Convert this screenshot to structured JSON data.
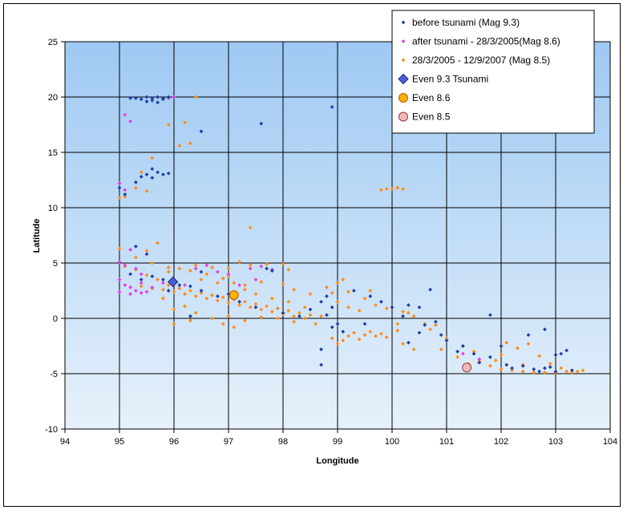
{
  "chart_data": {
    "type": "scatter",
    "xlabel": "Longitude",
    "ylabel": "Latitude",
    "xlim": [
      94,
      104
    ],
    "ylim": [
      -10,
      25
    ],
    "x_ticks": [
      "94",
      "95",
      "96",
      "97",
      "98",
      "99",
      "100",
      "101",
      "102",
      "103",
      "104"
    ],
    "y_ticks": [
      "-10",
      "-5",
      "0",
      "5",
      "10",
      "15",
      "20",
      "25"
    ],
    "grid": true,
    "legend_position": "top-right",
    "series": [
      {
        "name": "before tsunami (Mag 9.3)",
        "color": "#1f3fa8",
        "marker": "diamond",
        "points": [
          [
            95.3,
            19.9
          ],
          [
            95.4,
            19.8
          ],
          [
            95.5,
            20.0
          ],
          [
            95.6,
            19.9
          ],
          [
            95.7,
            20.0
          ],
          [
            95.8,
            19.8
          ],
          [
            95.7,
            19.5
          ],
          [
            95.5,
            19.6
          ],
          [
            95.6,
            19.7
          ],
          [
            95.8,
            19.9
          ],
          [
            95.9,
            20.0
          ],
          [
            95.2,
            19.9
          ],
          [
            96.5,
            16.9
          ],
          [
            97.6,
            17.6
          ],
          [
            98.9,
            19.1
          ],
          [
            95.3,
            12.3
          ],
          [
            95.4,
            12.8
          ],
          [
            95.5,
            13.0
          ],
          [
            95.6,
            13.5
          ],
          [
            95.7,
            13.2
          ],
          [
            95.8,
            13.0
          ],
          [
            95.9,
            13.1
          ],
          [
            95.6,
            12.7
          ],
          [
            95.0,
            11.8
          ],
          [
            95.1,
            11.2
          ],
          [
            95.3,
            6.5
          ],
          [
            95.5,
            5.8
          ],
          [
            95.2,
            4.0
          ],
          [
            95.4,
            3.5
          ],
          [
            95.6,
            3.8
          ],
          [
            95.8,
            3.5
          ],
          [
            96.0,
            3.3
          ],
          [
            96.1,
            3.0
          ],
          [
            95.9,
            2.5
          ],
          [
            96.3,
            2.9
          ],
          [
            96.5,
            2.5
          ],
          [
            96.8,
            2.0
          ],
          [
            97.0,
            2.2
          ],
          [
            97.2,
            1.5
          ],
          [
            97.5,
            1.0
          ],
          [
            97.7,
            4.5
          ],
          [
            97.8,
            4.3
          ],
          [
            98.0,
            0.5
          ],
          [
            98.3,
            0.2
          ],
          [
            98.5,
            0.8
          ],
          [
            98.7,
            1.5
          ],
          [
            98.8,
            2.0
          ],
          [
            98.9,
            1.0
          ],
          [
            98.8,
            0.3
          ],
          [
            98.9,
            -0.8
          ],
          [
            98.7,
            -2.8
          ],
          [
            98.7,
            -4.2
          ],
          [
            99.0,
            -0.5
          ],
          [
            99.1,
            -1.2
          ],
          [
            99.3,
            2.5
          ],
          [
            99.6,
            2.0
          ],
          [
            99.8,
            1.5
          ],
          [
            100.0,
            1.0
          ],
          [
            100.2,
            0.2
          ],
          [
            100.3,
            1.2
          ],
          [
            100.5,
            1.0
          ],
          [
            100.7,
            2.6
          ],
          [
            100.6,
            -0.6
          ],
          [
            100.8,
            -0.3
          ],
          [
            100.9,
            -1.5
          ],
          [
            101.0,
            -2.0
          ],
          [
            101.2,
            -3.0
          ],
          [
            101.3,
            -2.5
          ],
          [
            101.5,
            -3.2
          ],
          [
            101.6,
            -4.0
          ],
          [
            101.8,
            -3.5
          ],
          [
            102.0,
            -2.5
          ],
          [
            102.1,
            -4.2
          ],
          [
            102.2,
            -4.5
          ],
          [
            102.4,
            -4.3
          ],
          [
            102.6,
            -4.6
          ],
          [
            102.8,
            -4.5
          ],
          [
            103.0,
            -4.8
          ],
          [
            103.1,
            -3.2
          ],
          [
            103.2,
            -2.9
          ],
          [
            103.3,
            -4.7
          ],
          [
            102.7,
            -4.8
          ],
          [
            102.9,
            -4.4
          ],
          [
            101.8,
            0.3
          ],
          [
            102.5,
            -1.5
          ],
          [
            102.8,
            -1.0
          ],
          [
            103.0,
            -3.3
          ],
          [
            100.3,
            -2.2
          ],
          [
            100.5,
            -1.3
          ],
          [
            99.5,
            -0.5
          ],
          [
            96.3,
            0.2
          ],
          [
            96.5,
            4.2
          ]
        ]
      },
      {
        "name": "after tsunami - 28/3/2005(Mag 8.6)",
        "color": "#e040e0",
        "marker": "diamond",
        "points": [
          [
            95.1,
            18.4
          ],
          [
            95.2,
            17.8
          ],
          [
            95.9,
            19.9
          ],
          [
            96.0,
            20.0
          ],
          [
            95.0,
            12.2
          ],
          [
            95.1,
            11.6
          ],
          [
            95.2,
            6.2
          ],
          [
            95.0,
            5.1
          ],
          [
            95.1,
            4.8
          ],
          [
            95.3,
            4.5
          ],
          [
            95.4,
            4.0
          ],
          [
            95.0,
            3.5
          ],
          [
            95.1,
            3.0
          ],
          [
            95.0,
            2.4
          ],
          [
            95.2,
            2.2
          ],
          [
            95.3,
            2.5
          ],
          [
            95.4,
            2.3
          ],
          [
            95.5,
            2.4
          ],
          [
            95.6,
            2.8
          ],
          [
            95.8,
            3.2
          ],
          [
            96.0,
            3.4
          ],
          [
            96.2,
            3.0
          ],
          [
            96.4,
            4.5
          ],
          [
            96.6,
            4.8
          ],
          [
            96.8,
            4.2
          ],
          [
            97.0,
            4.0
          ],
          [
            97.4,
            4.5
          ],
          [
            97.6,
            4.7
          ],
          [
            97.8,
            4.4
          ],
          [
            97.2,
            3.0
          ],
          [
            97.5,
            3.5
          ],
          [
            95.2,
            2.8
          ],
          [
            95.4,
            3.2
          ],
          [
            101.3,
            -3.2
          ],
          [
            101.6,
            -3.7
          ]
        ]
      },
      {
        "name": "28/3/2005 - 12/9/2007  (Mag 8.5)",
        "color": "#ff8c1a",
        "marker": "diamond",
        "points": [
          [
            96.4,
            20.0
          ],
          [
            95.9,
            17.5
          ],
          [
            96.2,
            17.7
          ],
          [
            96.3,
            15.8
          ],
          [
            96.1,
            15.6
          ],
          [
            95.6,
            14.5
          ],
          [
            95.4,
            13.2
          ],
          [
            95.3,
            11.8
          ],
          [
            95.5,
            11.5
          ],
          [
            95.0,
            10.9
          ],
          [
            95.1,
            11.0
          ],
          [
            97.4,
            8.2
          ],
          [
            95.7,
            6.8
          ],
          [
            95.5,
            6.1
          ],
          [
            95.0,
            6.3
          ],
          [
            95.3,
            5.5
          ],
          [
            95.6,
            5.0
          ],
          [
            95.9,
            4.6
          ],
          [
            96.1,
            4.5
          ],
          [
            96.3,
            4.3
          ],
          [
            96.6,
            4.0
          ],
          [
            96.9,
            3.6
          ],
          [
            97.1,
            3.2
          ],
          [
            97.3,
            3.0
          ],
          [
            97.6,
            3.3
          ],
          [
            98.0,
            3.1
          ],
          [
            98.2,
            2.6
          ],
          [
            98.5,
            2.2
          ],
          [
            98.8,
            2.8
          ],
          [
            99.0,
            3.2
          ],
          [
            99.2,
            2.4
          ],
          [
            99.5,
            1.8
          ],
          [
            99.7,
            1.2
          ],
          [
            99.9,
            0.9
          ],
          [
            100.2,
            0.6
          ],
          [
            100.4,
            0.2
          ],
          [
            99.9,
            11.7
          ],
          [
            100.0,
            11.7
          ],
          [
            100.1,
            11.8
          ],
          [
            100.2,
            11.7
          ],
          [
            99.8,
            11.6
          ],
          [
            95.1,
            4.7
          ],
          [
            95.3,
            4.4
          ],
          [
            95.5,
            3.9
          ],
          [
            95.7,
            3.5
          ],
          [
            95.9,
            3.0
          ],
          [
            96.1,
            2.7
          ],
          [
            96.3,
            2.5
          ],
          [
            96.5,
            2.3
          ],
          [
            96.7,
            2.1
          ],
          [
            96.9,
            1.9
          ],
          [
            97.1,
            1.7
          ],
          [
            97.3,
            1.5
          ],
          [
            97.5,
            1.3
          ],
          [
            97.7,
            1.1
          ],
          [
            97.9,
            0.9
          ],
          [
            98.1,
            0.7
          ],
          [
            98.3,
            0.5
          ],
          [
            98.5,
            0.3
          ],
          [
            98.7,
            0.2
          ],
          [
            95.4,
            2.9
          ],
          [
            95.6,
            2.7
          ],
          [
            95.8,
            2.6
          ],
          [
            96.0,
            2.4
          ],
          [
            96.2,
            2.2
          ],
          [
            96.4,
            2.0
          ],
          [
            96.6,
            1.8
          ],
          [
            96.8,
            1.6
          ],
          [
            97.0,
            1.4
          ],
          [
            97.2,
            1.2
          ],
          [
            97.4,
            1.0
          ],
          [
            97.6,
            0.8
          ],
          [
            97.8,
            0.6
          ],
          [
            98.0,
            0.4
          ],
          [
            98.2,
            0.2
          ],
          [
            98.4,
            0.0
          ],
          [
            96.5,
            3.5
          ],
          [
            96.8,
            3.2
          ],
          [
            97.0,
            3.8
          ],
          [
            97.3,
            2.6
          ],
          [
            97.5,
            2.2
          ],
          [
            97.8,
            1.8
          ],
          [
            98.1,
            1.5
          ],
          [
            98.4,
            1.0
          ],
          [
            96.4,
            0.5
          ],
          [
            96.7,
            0.0
          ],
          [
            97.0,
            0.2
          ],
          [
            97.3,
            -0.2
          ],
          [
            97.6,
            0.1
          ],
          [
            97.9,
            0.0
          ],
          [
            98.2,
            -0.3
          ],
          [
            98.6,
            -0.5
          ],
          [
            96.0,
            0.8
          ],
          [
            96.2,
            1.1
          ],
          [
            95.8,
            1.8
          ],
          [
            96.3,
            -0.2
          ],
          [
            96.0,
            -0.5
          ],
          [
            96.9,
            -0.5
          ],
          [
            97.1,
            -0.8
          ],
          [
            95.9,
            4.2
          ],
          [
            96.4,
            4.8
          ],
          [
            96.7,
            4.6
          ],
          [
            97.0,
            4.5
          ],
          [
            97.4,
            4.8
          ],
          [
            98.0,
            4.9
          ],
          [
            97.2,
            5.1
          ],
          [
            97.7,
            4.9
          ],
          [
            98.1,
            4.4
          ],
          [
            99.3,
            -1.3
          ],
          [
            99.5,
            -1.5
          ],
          [
            99.7,
            -1.6
          ],
          [
            99.9,
            -1.7
          ],
          [
            99.1,
            -2.0
          ],
          [
            98.9,
            -1.8
          ],
          [
            99.0,
            -2.3
          ],
          [
            99.4,
            -1.9
          ],
          [
            99.6,
            -1.2
          ],
          [
            99.8,
            -1.4
          ],
          [
            99.2,
            -1.6
          ],
          [
            100.1,
            -1.1
          ],
          [
            99.0,
            1.5
          ],
          [
            99.2,
            1.0
          ],
          [
            99.4,
            0.7
          ],
          [
            99.1,
            3.5
          ],
          [
            98.9,
            2.3
          ],
          [
            99.6,
            2.5
          ],
          [
            100.2,
            -2.3
          ],
          [
            100.4,
            -2.8
          ],
          [
            100.6,
            -0.5
          ],
          [
            100.8,
            -0.6
          ],
          [
            101.0,
            -1.8
          ],
          [
            100.9,
            -2.8
          ],
          [
            101.2,
            -3.5
          ],
          [
            101.4,
            -4.1
          ],
          [
            101.6,
            -3.9
          ],
          [
            101.8,
            -4.3
          ],
          [
            102.0,
            -4.6
          ],
          [
            102.2,
            -4.7
          ],
          [
            102.4,
            -4.8
          ],
          [
            102.6,
            -4.9
          ],
          [
            102.8,
            -4.9
          ],
          [
            103.0,
            -4.9
          ],
          [
            103.2,
            -4.8
          ],
          [
            103.4,
            -4.8
          ],
          [
            103.5,
            -4.7
          ],
          [
            102.1,
            -2.2
          ],
          [
            102.3,
            -2.7
          ],
          [
            102.5,
            -2.3
          ],
          [
            102.7,
            -3.4
          ],
          [
            102.9,
            -4.1
          ],
          [
            101.9,
            -3.8
          ],
          [
            102.0,
            -3.3
          ],
          [
            100.1,
            -0.5
          ],
          [
            100.3,
            0.5
          ],
          [
            100.7,
            -1.0
          ],
          [
            101.3,
            -2.5
          ],
          [
            101.5,
            -3.0
          ],
          [
            103.3,
            -4.9
          ],
          [
            103.1,
            -4.5
          ],
          [
            102.4,
            -4.2
          ]
        ]
      }
    ],
    "events": [
      {
        "name": "Even 9.3 Tsunami",
        "x": 95.98,
        "y": 3.3,
        "color": "#4a5cd6"
      },
      {
        "name": "Even 8.6",
        "x": 97.1,
        "y": 2.1,
        "color": "#ffb000"
      },
      {
        "name": "Even 8.5",
        "x": 101.37,
        "y": -4.45,
        "color": "#f2b8b8"
      }
    ]
  }
}
